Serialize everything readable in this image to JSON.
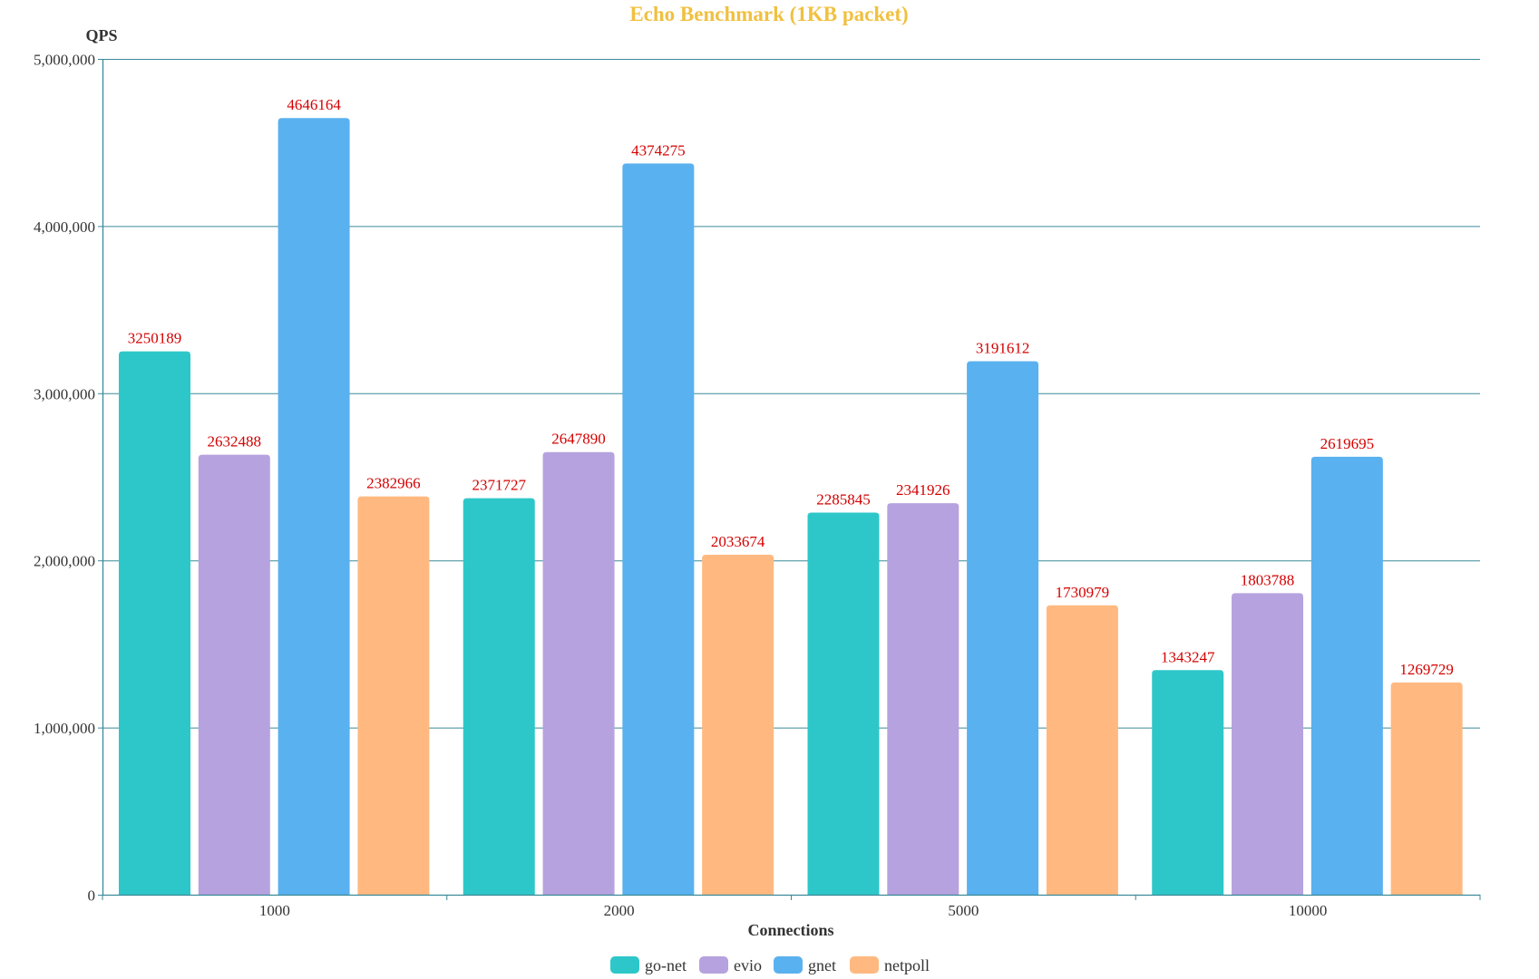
{
  "chart_data": {
    "type": "bar",
    "title": "Echo Benchmark (1KB packet)",
    "xlabel": "Connections",
    "ylabel": "QPS",
    "categories": [
      "1000",
      "2000",
      "5000",
      "10000"
    ],
    "ylim": [
      0,
      5000000
    ],
    "yticks": [
      0,
      1000000,
      2000000,
      3000000,
      4000000,
      5000000
    ],
    "ytick_labels": [
      "0",
      "1,000,000",
      "2,000,000",
      "3,000,000",
      "4,000,000",
      "5,000,000"
    ],
    "grid": true,
    "legend_position": "bottom-center",
    "series": [
      {
        "name": "go-net",
        "color": "#2ec7c9",
        "values": [
          3250189,
          2371727,
          2285845,
          1343247
        ],
        "labels": [
          "3250189",
          "2371727",
          "2285845",
          "1343247"
        ]
      },
      {
        "name": "evio",
        "color": "#b6a2de",
        "values": [
          2632488,
          2647890,
          2341926,
          1803788
        ],
        "labels": [
          "2632488",
          "2647890",
          "2341926",
          "1803788"
        ]
      },
      {
        "name": "gnet",
        "color": "#5ab1ef",
        "values": [
          4646164,
          4374275,
          3191612,
          2619695
        ],
        "labels": [
          "4646164",
          "4374275",
          "3191612",
          "2619695"
        ]
      },
      {
        "name": "netpoll",
        "color": "#ffb980",
        "values": [
          2382966,
          2033674,
          1730979,
          1269729
        ],
        "labels": [
          "2382966",
          "2033674",
          "1730979",
          "1269729"
        ]
      }
    ]
  }
}
